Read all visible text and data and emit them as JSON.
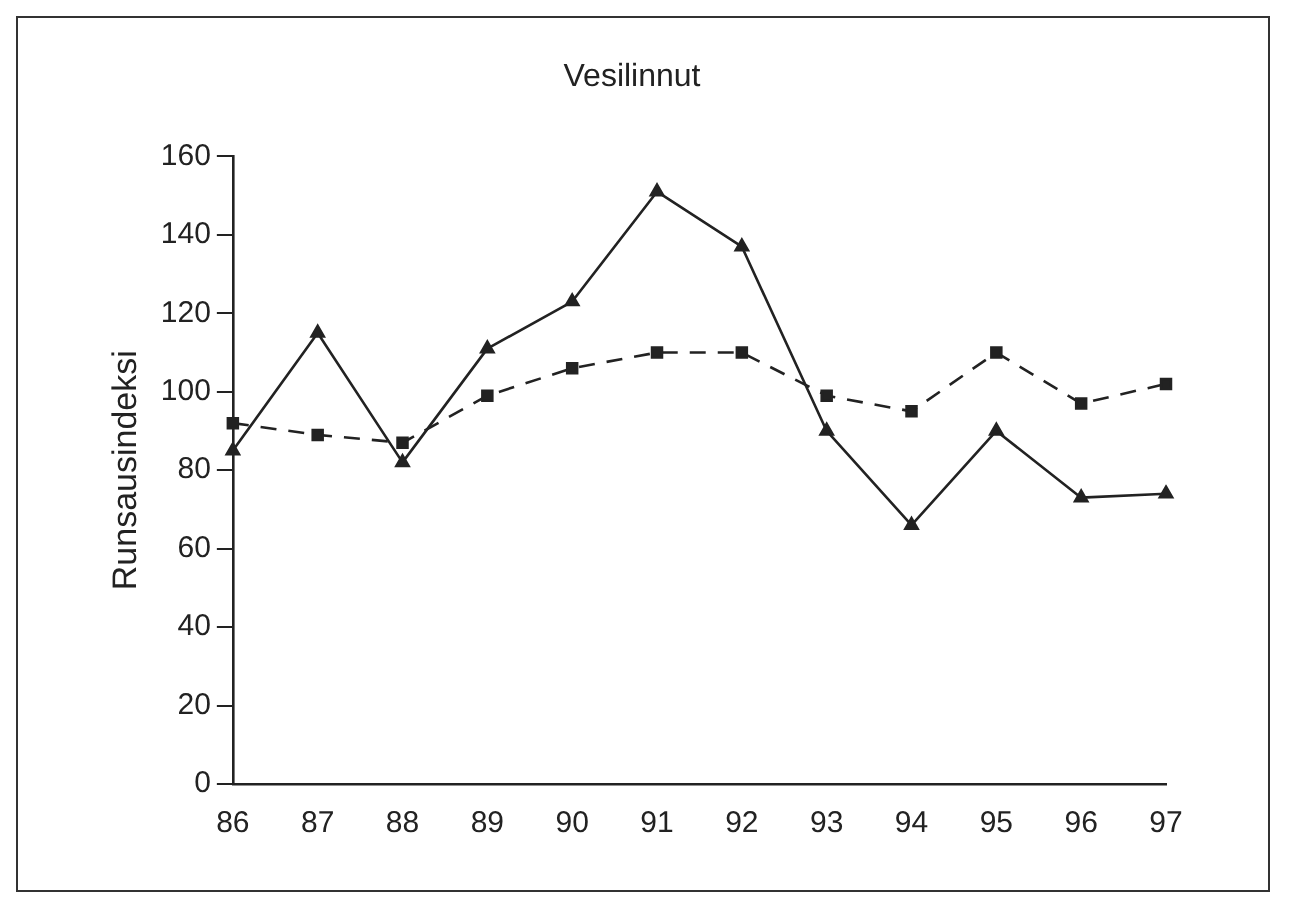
{
  "chart_data": {
    "type": "line",
    "title": "Vesilinnut",
    "ylabel": "Runsausindeksi",
    "categories": [
      "86",
      "87",
      "88",
      "89",
      "90",
      "91",
      "92",
      "93",
      "94",
      "95",
      "96",
      "97"
    ],
    "series": [
      {
        "color": "#222222",
        "marker": "triangle",
        "line_style": "solid",
        "values": [
          85,
          115,
          82,
          111,
          123,
          151,
          137,
          90,
          66,
          90,
          73,
          74
        ]
      },
      {
        "color": "#222222",
        "marker": "square",
        "line_style": "dashed",
        "values": [
          92,
          89,
          87,
          99,
          106,
          110,
          110,
          99,
          95,
          110,
          97,
          102
        ]
      }
    ],
    "ylim": [
      0,
      160
    ],
    "yticks": [
      0,
      20,
      40,
      60,
      80,
      100,
      120,
      140,
      160
    ],
    "grid": false,
    "legend": false
  }
}
